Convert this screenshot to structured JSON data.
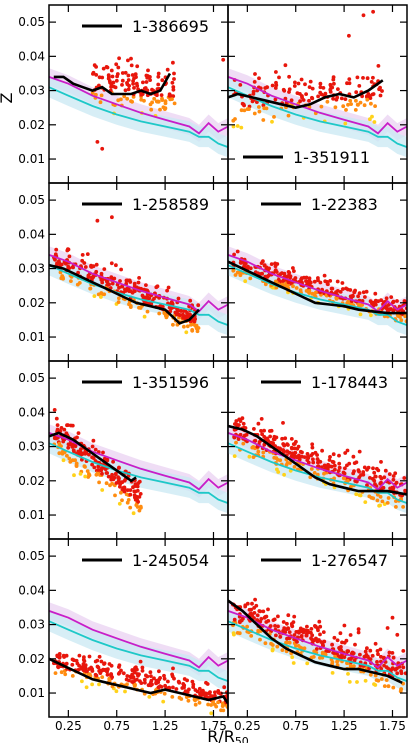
{
  "chart_data": {
    "type": "line",
    "layout": "4 rows x 2 columns grid of panels, shared axes",
    "xlabel": "R/R₅₀",
    "xlabel_main": "R/R",
    "xlabel_sub": "50",
    "ylabel": "Z",
    "xlim": [
      0.05,
      1.9
    ],
    "ylim": [
      0.003,
      0.055
    ],
    "xticks": [
      0.25,
      0.75,
      1.25,
      1.75
    ],
    "xtick_labels": [
      "0.25",
      "0.75",
      "1.25",
      "1.75"
    ],
    "yticks": [
      0.01,
      0.02,
      0.03,
      0.04,
      0.05
    ],
    "ytick_labels": [
      "0.01",
      "0.02",
      "0.03",
      "0.04",
      "0.05"
    ],
    "colors": {
      "galaxy": "#000000",
      "reference_magenta": "#c81ec8",
      "reference_cyan": "#1ec8c8",
      "band_magenta": "#ead2f2",
      "band_cyan": "#c9e8f3",
      "spaxel_red": "#e8160c",
      "spaxel_orange": "#ff8c10",
      "spaxel_yellow": "#ffd21a"
    },
    "reference_lines": {
      "magenta": {
        "x": [
          0.05,
          0.25,
          0.5,
          0.75,
          1.0,
          1.25,
          1.5,
          1.6,
          1.7,
          1.8,
          1.9
        ],
        "y": [
          0.034,
          0.032,
          0.0285,
          0.026,
          0.0235,
          0.0215,
          0.0195,
          0.0175,
          0.0205,
          0.018,
          0.0195
        ],
        "band": 0.0025
      },
      "cyan": {
        "x": [
          0.05,
          0.25,
          0.5,
          0.75,
          1.0,
          1.25,
          1.5,
          1.6,
          1.7,
          1.8,
          1.9
        ],
        "y": [
          0.031,
          0.0285,
          0.0255,
          0.023,
          0.021,
          0.0195,
          0.018,
          0.0165,
          0.0165,
          0.0145,
          0.0135
        ],
        "band": 0.003
      }
    },
    "panels": [
      {
        "name": "1-386695",
        "legend": "top-right",
        "x": [
          0.1,
          0.2,
          0.3,
          0.4,
          0.5,
          0.6,
          0.7,
          0.8,
          0.9,
          1.0,
          1.1,
          1.2,
          1.3
        ],
        "y": [
          0.034,
          0.034,
          0.032,
          0.031,
          0.03,
          0.031,
          0.029,
          0.029,
          0.029,
          0.03,
          0.029,
          0.03,
          0.035
        ],
        "scatter": {
          "xrange": [
            0.5,
            1.35
          ],
          "center": [
            0.032,
            0.03
          ],
          "spread": 0.007,
          "count": 150,
          "outliers": [
            [
              0.6,
              0.013
            ],
            [
              1.85,
              0.039
            ],
            [
              0.55,
              0.015
            ]
          ]
        }
      },
      {
        "name": "1-351911",
        "legend": "bottom-right",
        "x": [
          0.05,
          0.15,
          0.3,
          0.45,
          0.6,
          0.75,
          0.9,
          1.05,
          1.2,
          1.35,
          1.5,
          1.65
        ],
        "y": [
          0.028,
          0.029,
          0.028,
          0.027,
          0.026,
          0.025,
          0.026,
          0.028,
          0.029,
          0.028,
          0.03,
          0.033
        ],
        "scatter": {
          "xrange": [
            0.1,
            1.65
          ],
          "center": [
            0.027,
            0.03
          ],
          "spread": 0.007,
          "count": 170,
          "outliers": [
            [
              1.45,
              0.052
            ],
            [
              1.55,
              0.053
            ],
            [
              1.3,
              0.046
            ]
          ]
        }
      },
      {
        "name": "1-258589",
        "legend": "top-right",
        "x": [
          0.05,
          0.2,
          0.35,
          0.5,
          0.65,
          0.8,
          0.95,
          1.1,
          1.25,
          1.4,
          1.5,
          1.6
        ],
        "y": [
          0.031,
          0.03,
          0.028,
          0.026,
          0.024,
          0.022,
          0.02,
          0.019,
          0.018,
          0.014,
          0.015,
          0.018
        ],
        "scatter": {
          "xrange": [
            0.1,
            1.6
          ],
          "center": [
            0.032,
            0.015
          ],
          "spread": 0.005,
          "count": 300,
          "outliers": [
            [
              0.7,
              0.045
            ],
            [
              0.55,
              0.044
            ]
          ]
        }
      },
      {
        "name": "1-22383",
        "legend": "top-right",
        "x": [
          0.05,
          0.2,
          0.35,
          0.5,
          0.65,
          0.8,
          0.95,
          1.1,
          1.25,
          1.4,
          1.55,
          1.7,
          1.9
        ],
        "y": [
          0.032,
          0.03,
          0.028,
          0.026,
          0.024,
          0.022,
          0.02,
          0.0195,
          0.019,
          0.018,
          0.0175,
          0.017,
          0.017
        ],
        "scatter": {
          "xrange": [
            0.1,
            1.9
          ],
          "center": [
            0.031,
            0.017
          ],
          "spread": 0.0035,
          "count": 320,
          "outliers": []
        }
      },
      {
        "name": "1-351596",
        "legend": "top-right",
        "x": [
          0.05,
          0.15,
          0.3,
          0.45,
          0.6,
          0.75,
          0.9,
          0.95
        ],
        "y": [
          0.033,
          0.034,
          0.032,
          0.029,
          0.026,
          0.023,
          0.02,
          0.021
        ],
        "scatter": {
          "xrange": [
            0.1,
            1.0
          ],
          "center": [
            0.034,
            0.015
          ],
          "spread": 0.006,
          "count": 220,
          "outliers": []
        }
      },
      {
        "name": "1-178443",
        "legend": "top-right",
        "x": [
          0.05,
          0.2,
          0.35,
          0.5,
          0.65,
          0.8,
          0.95,
          1.1,
          1.25,
          1.4,
          1.55,
          1.7,
          1.9
        ],
        "y": [
          0.036,
          0.035,
          0.033,
          0.03,
          0.027,
          0.024,
          0.021,
          0.019,
          0.018,
          0.017,
          0.017,
          0.017,
          0.016
        ],
        "scatter": {
          "xrange": [
            0.1,
            1.9
          ],
          "center": [
            0.034,
            0.016
          ],
          "spread": 0.0055,
          "count": 340,
          "outliers": []
        }
      },
      {
        "name": "1-245054",
        "legend": "top-right",
        "x": [
          0.05,
          0.2,
          0.35,
          0.5,
          0.65,
          0.8,
          0.95,
          1.1,
          1.25,
          1.4,
          1.55,
          1.7,
          1.85,
          1.9
        ],
        "y": [
          0.02,
          0.018,
          0.016,
          0.014,
          0.013,
          0.012,
          0.011,
          0.01,
          0.011,
          0.01,
          0.009,
          0.008,
          0.009,
          0.007
        ],
        "scatter": {
          "xrange": [
            0.1,
            1.9
          ],
          "center": [
            0.019,
            0.008
          ],
          "spread": 0.004,
          "count": 300,
          "outliers": []
        }
      },
      {
        "name": "1-276547",
        "legend": "top-right",
        "x": [
          0.05,
          0.2,
          0.35,
          0.5,
          0.65,
          0.8,
          0.95,
          1.1,
          1.25,
          1.4,
          1.55,
          1.7,
          1.85
        ],
        "y": [
          0.037,
          0.034,
          0.03,
          0.026,
          0.023,
          0.021,
          0.019,
          0.018,
          0.017,
          0.017,
          0.016,
          0.015,
          0.013
        ],
        "scatter": {
          "xrange": [
            0.1,
            1.9
          ],
          "center": [
            0.033,
            0.015
          ],
          "spread": 0.006,
          "count": 360,
          "outliers": [
            [
              1.75,
              0.032
            ],
            [
              1.7,
              0.029
            ],
            [
              1.8,
              0.027
            ]
          ]
        }
      }
    ]
  }
}
